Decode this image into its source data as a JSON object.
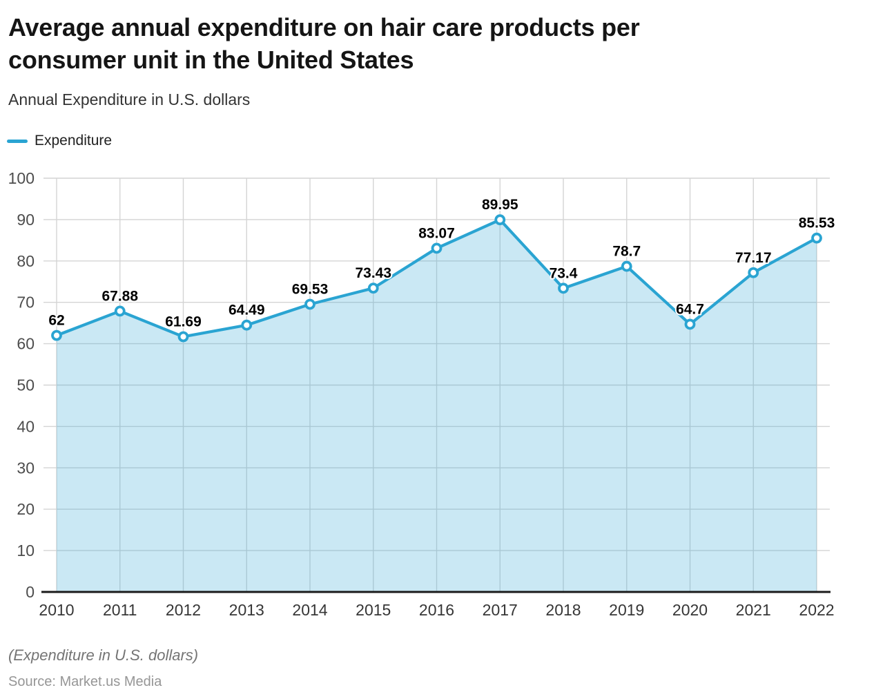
{
  "header": {
    "title": "Average annual expenditure on hair care products per consumer unit in the United States",
    "subtitle": "Annual Expenditure in U.S. dollars"
  },
  "legend": {
    "series_label": "Expenditure"
  },
  "footer": {
    "note": "(Expenditure in U.S. dollars)",
    "source": "Source: Market.us Media"
  },
  "colors": {
    "line": "#2aa4d2",
    "area_fill": "rgba(42,164,210,0.25)",
    "marker_fill": "#ffffff",
    "grid": "#d4d4d4",
    "axis": "#1a1a1a"
  },
  "chart_data": {
    "type": "area",
    "title": "Average annual expenditure on hair care products per consumer unit in the United States",
    "subtitle": "Annual Expenditure in U.S. dollars",
    "x": [
      "2010",
      "2011",
      "2012",
      "2013",
      "2014",
      "2015",
      "2016",
      "2017",
      "2018",
      "2019",
      "2020",
      "2021",
      "2022"
    ],
    "series": [
      {
        "name": "Expenditure",
        "values": [
          62,
          67.88,
          61.69,
          64.49,
          69.53,
          73.43,
          83.07,
          89.95,
          73.4,
          78.7,
          64.7,
          77.17,
          85.53
        ]
      }
    ],
    "point_labels": [
      "62",
      "67.88",
      "61.69",
      "64.49",
      "69.53",
      "73.43",
      "83.07",
      "89.95",
      "73.4",
      "78.7",
      "64.7",
      "77.17",
      "85.53"
    ],
    "xlabel": "",
    "ylabel": "Annual Expenditure in U.S. dollars",
    "ylim": [
      0,
      100
    ],
    "yticks": [
      0,
      10,
      20,
      30,
      40,
      50,
      60,
      70,
      80,
      90,
      100
    ],
    "grid": true,
    "legend_position": "top-left"
  }
}
